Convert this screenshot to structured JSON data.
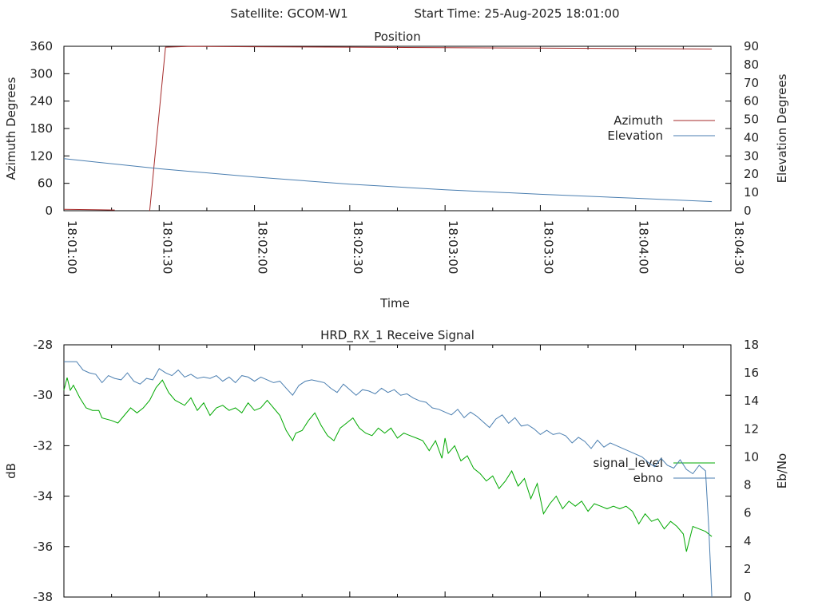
{
  "header": {
    "satellite_label": "Satellite: GCOM-W1",
    "start_time_label": "Start Time: 25-Aug-2025 18:01:00"
  },
  "chart_data": [
    {
      "type": "line",
      "title": "Position",
      "xlabel": "Time",
      "ylabel": "Azimuth Degrees",
      "y2label": "Elevation Degrees",
      "xlim": [
        "18:01:00",
        "18:04:30"
      ],
      "ylim": [
        0,
        360
      ],
      "y2lim": [
        0,
        90
      ],
      "x_ticks": [
        "18:01:00",
        "18:01:30",
        "18:02:00",
        "18:02:30",
        "18:03:00",
        "18:03:30",
        "18:04:00",
        "18:04:30"
      ],
      "y_ticks": [
        "0",
        "60",
        "120",
        "180",
        "240",
        "300",
        "360"
      ],
      "y2_ticks": [
        "0",
        "10",
        "20",
        "30",
        "40",
        "50",
        "60",
        "70",
        "80",
        "90"
      ],
      "legend_position": "right",
      "grid": false,
      "series": [
        {
          "name": "Azimuth",
          "axis": "left",
          "color": "#a52a2a",
          "points": [
            [
              "18:01:00",
              3
            ],
            [
              "18:01:16",
              1.5
            ],
            [
              "18:01:17",
              null
            ],
            [
              "18:01:27",
              0
            ],
            [
              "18:01:32",
              358
            ],
            [
              "18:01:40",
              359.8
            ],
            [
              "18:02:00",
              359
            ],
            [
              "18:02:30",
              358
            ],
            [
              "18:03:00",
              357
            ],
            [
              "18:03:30",
              356
            ],
            [
              "18:04:00",
              355
            ],
            [
              "18:04:24",
              354
            ]
          ]
        },
        {
          "name": "Elevation",
          "axis": "right",
          "color": "#4a7eb0",
          "points": [
            [
              "18:01:00",
              28.5
            ],
            [
              "18:01:30",
              23
            ],
            [
              "18:02:00",
              18.5
            ],
            [
              "18:02:30",
              14.5
            ],
            [
              "18:03:00",
              11.5
            ],
            [
              "18:03:30",
              9
            ],
            [
              "18:04:00",
              6.8
            ],
            [
              "18:04:24",
              5
            ]
          ]
        }
      ]
    },
    {
      "type": "line",
      "title": "HRD_RX_1 Receive Signal",
      "xlabel": "",
      "ylabel": "dB",
      "y2label": "Eb/No",
      "xlim": [
        "18:01:00",
        "18:04:30"
      ],
      "ylim": [
        -38,
        -28
      ],
      "y2lim": [
        0,
        18
      ],
      "y_ticks": [
        "-28",
        "-30",
        "-32",
        "-34",
        "-36",
        "-38"
      ],
      "y2_ticks": [
        "0",
        "2",
        "4",
        "6",
        "8",
        "10",
        "12",
        "14",
        "16",
        "18"
      ],
      "legend_position": "right",
      "grid": false,
      "series": [
        {
          "name": "signal_level",
          "axis": "left",
          "color": "#00a800",
          "points": [
            [
              "18:01:00",
              -29.8
            ],
            [
              "18:01:01",
              -29.3
            ],
            [
              "18:01:02",
              -29.8
            ],
            [
              "18:01:03",
              -29.6
            ],
            [
              "18:01:05",
              -30.1
            ],
            [
              "18:01:07",
              -30.5
            ],
            [
              "18:01:09",
              -30.6
            ],
            [
              "18:01:11",
              -30.6
            ],
            [
              "18:01:12",
              -30.9
            ],
            [
              "18:01:15",
              -31.0
            ],
            [
              "18:01:17",
              -31.1
            ],
            [
              "18:01:19",
              -30.8
            ],
            [
              "18:01:21",
              -30.5
            ],
            [
              "18:01:23",
              -30.7
            ],
            [
              "18:01:25",
              -30.5
            ],
            [
              "18:01:27",
              -30.2
            ],
            [
              "18:01:29",
              -29.7
            ],
            [
              "18:01:31",
              -29.4
            ],
            [
              "18:01:33",
              -29.9
            ],
            [
              "18:01:35",
              -30.2
            ],
            [
              "18:01:38",
              -30.4
            ],
            [
              "18:01:40",
              -30.1
            ],
            [
              "18:01:42",
              -30.6
            ],
            [
              "18:01:44",
              -30.3
            ],
            [
              "18:01:46",
              -30.8
            ],
            [
              "18:01:48",
              -30.5
            ],
            [
              "18:01:50",
              -30.4
            ],
            [
              "18:01:52",
              -30.6
            ],
            [
              "18:01:54",
              -30.5
            ],
            [
              "18:01:56",
              -30.7
            ],
            [
              "18:01:58",
              -30.3
            ],
            [
              "18:02:00",
              -30.6
            ],
            [
              "18:02:02",
              -30.5
            ],
            [
              "18:02:04",
              -30.2
            ],
            [
              "18:02:06",
              -30.5
            ],
            [
              "18:02:08",
              -30.8
            ],
            [
              "18:02:10",
              -31.4
            ],
            [
              "18:02:12",
              -31.8
            ],
            [
              "18:02:13",
              -31.5
            ],
            [
              "18:02:15",
              -31.4
            ],
            [
              "18:02:17",
              -31.0
            ],
            [
              "18:02:19",
              -30.7
            ],
            [
              "18:02:21",
              -31.2
            ],
            [
              "18:02:23",
              -31.6
            ],
            [
              "18:02:25",
              -31.8
            ],
            [
              "18:02:27",
              -31.3
            ],
            [
              "18:02:29",
              -31.1
            ],
            [
              "18:02:31",
              -30.9
            ],
            [
              "18:02:33",
              -31.3
            ],
            [
              "18:02:35",
              -31.5
            ],
            [
              "18:02:37",
              -31.6
            ],
            [
              "18:02:39",
              -31.3
            ],
            [
              "18:02:41",
              -31.5
            ],
            [
              "18:02:43",
              -31.3
            ],
            [
              "18:02:45",
              -31.7
            ],
            [
              "18:02:47",
              -31.5
            ],
            [
              "18:02:49",
              -31.6
            ],
            [
              "18:02:51",
              -31.7
            ],
            [
              "18:02:53",
              -31.8
            ],
            [
              "18:02:55",
              -32.2
            ],
            [
              "18:02:57",
              -31.8
            ],
            [
              "18:02:59",
              -32.5
            ],
            [
              "18:03:00",
              -31.7
            ],
            [
              "18:03:01",
              -32.3
            ],
            [
              "18:03:03",
              -32.0
            ],
            [
              "18:03:05",
              -32.6
            ],
            [
              "18:03:07",
              -32.4
            ],
            [
              "18:03:09",
              -32.9
            ],
            [
              "18:03:11",
              -33.1
            ],
            [
              "18:03:13",
              -33.4
            ],
            [
              "18:03:15",
              -33.2
            ],
            [
              "18:03:17",
              -33.7
            ],
            [
              "18:03:19",
              -33.4
            ],
            [
              "18:03:21",
              -33.0
            ],
            [
              "18:03:23",
              -33.6
            ],
            [
              "18:03:25",
              -33.3
            ],
            [
              "18:03:27",
              -34.1
            ],
            [
              "18:03:29",
              -33.5
            ],
            [
              "18:03:31",
              -34.7
            ],
            [
              "18:03:33",
              -34.3
            ],
            [
              "18:03:35",
              -34.0
            ],
            [
              "18:03:37",
              -34.5
            ],
            [
              "18:03:39",
              -34.2
            ],
            [
              "18:03:41",
              -34.4
            ],
            [
              "18:03:43",
              -34.2
            ],
            [
              "18:03:45",
              -34.6
            ],
            [
              "18:03:47",
              -34.3
            ],
            [
              "18:03:49",
              -34.4
            ],
            [
              "18:03:51",
              -34.5
            ],
            [
              "18:03:53",
              -34.4
            ],
            [
              "18:03:55",
              -34.5
            ],
            [
              "18:03:57",
              -34.4
            ],
            [
              "18:03:59",
              -34.6
            ],
            [
              "18:04:01",
              -35.1
            ],
            [
              "18:04:03",
              -34.7
            ],
            [
              "18:04:05",
              -35.0
            ],
            [
              "18:04:07",
              -34.9
            ],
            [
              "18:04:09",
              -35.3
            ],
            [
              "18:04:11",
              -35.0
            ],
            [
              "18:04:13",
              -35.2
            ],
            [
              "18:04:15",
              -35.5
            ],
            [
              "18:04:16",
              -36.2
            ],
            [
              "18:04:18",
              -35.2
            ],
            [
              "18:04:20",
              -35.3
            ],
            [
              "18:04:22",
              -35.4
            ],
            [
              "18:04:24",
              -35.6
            ]
          ]
        },
        {
          "name": "ebno",
          "axis": "right",
          "color": "#4a7eb0",
          "points": [
            [
              "18:01:00",
              16.8
            ],
            [
              "18:01:04",
              16.8
            ],
            [
              "18:01:06",
              16.2
            ],
            [
              "18:01:08",
              16.0
            ],
            [
              "18:01:10",
              15.9
            ],
            [
              "18:01:12",
              15.3
            ],
            [
              "18:01:14",
              15.8
            ],
            [
              "18:01:16",
              15.6
            ],
            [
              "18:01:18",
              15.5
            ],
            [
              "18:01:20",
              16.0
            ],
            [
              "18:01:22",
              15.4
            ],
            [
              "18:01:24",
              15.2
            ],
            [
              "18:01:26",
              15.6
            ],
            [
              "18:01:28",
              15.5
            ],
            [
              "18:01:30",
              16.3
            ],
            [
              "18:01:32",
              16.0
            ],
            [
              "18:01:34",
              15.8
            ],
            [
              "18:01:36",
              16.2
            ],
            [
              "18:01:38",
              15.7
            ],
            [
              "18:01:40",
              15.9
            ],
            [
              "18:01:42",
              15.6
            ],
            [
              "18:01:44",
              15.7
            ],
            [
              "18:01:46",
              15.6
            ],
            [
              "18:01:48",
              15.8
            ],
            [
              "18:01:50",
              15.4
            ],
            [
              "18:01:52",
              15.7
            ],
            [
              "18:01:54",
              15.3
            ],
            [
              "18:01:56",
              15.8
            ],
            [
              "18:01:58",
              15.7
            ],
            [
              "18:02:00",
              15.4
            ],
            [
              "18:02:02",
              15.7
            ],
            [
              "18:02:04",
              15.5
            ],
            [
              "18:02:06",
              15.3
            ],
            [
              "18:02:08",
              15.4
            ],
            [
              "18:02:10",
              14.9
            ],
            [
              "18:02:12",
              14.4
            ],
            [
              "18:02:14",
              15.1
            ],
            [
              "18:02:16",
              15.4
            ],
            [
              "18:02:18",
              15.5
            ],
            [
              "18:02:20",
              15.4
            ],
            [
              "18:02:22",
              15.3
            ],
            [
              "18:02:24",
              14.9
            ],
            [
              "18:02:26",
              14.6
            ],
            [
              "18:02:28",
              15.2
            ],
            [
              "18:02:30",
              14.8
            ],
            [
              "18:02:32",
              14.4
            ],
            [
              "18:02:34",
              14.8
            ],
            [
              "18:02:36",
              14.7
            ],
            [
              "18:02:38",
              14.5
            ],
            [
              "18:02:40",
              14.9
            ],
            [
              "18:02:42",
              14.6
            ],
            [
              "18:02:44",
              14.8
            ],
            [
              "18:02:46",
              14.4
            ],
            [
              "18:02:48",
              14.5
            ],
            [
              "18:02:50",
              14.2
            ],
            [
              "18:02:52",
              14.0
            ],
            [
              "18:02:54",
              13.9
            ],
            [
              "18:02:56",
              13.5
            ],
            [
              "18:02:58",
              13.4
            ],
            [
              "18:03:00",
              13.2
            ],
            [
              "18:03:02",
              13.0
            ],
            [
              "18:03:04",
              13.4
            ],
            [
              "18:03:06",
              12.8
            ],
            [
              "18:03:08",
              13.2
            ],
            [
              "18:03:10",
              12.9
            ],
            [
              "18:03:12",
              12.5
            ],
            [
              "18:03:14",
              12.1
            ],
            [
              "18:03:16",
              12.7
            ],
            [
              "18:03:18",
              13.0
            ],
            [
              "18:03:20",
              12.4
            ],
            [
              "18:03:22",
              12.8
            ],
            [
              "18:03:24",
              12.2
            ],
            [
              "18:03:26",
              12.3
            ],
            [
              "18:03:28",
              12.0
            ],
            [
              "18:03:30",
              11.6
            ],
            [
              "18:03:32",
              11.9
            ],
            [
              "18:03:34",
              11.6
            ],
            [
              "18:03:36",
              11.7
            ],
            [
              "18:03:38",
              11.5
            ],
            [
              "18:03:40",
              11.0
            ],
            [
              "18:03:42",
              11.4
            ],
            [
              "18:03:44",
              11.1
            ],
            [
              "18:03:46",
              10.6
            ],
            [
              "18:03:48",
              11.2
            ],
            [
              "18:03:50",
              10.7
            ],
            [
              "18:03:52",
              11.0
            ],
            [
              "18:03:54",
              10.8
            ],
            [
              "18:03:56",
              10.6
            ],
            [
              "18:03:58",
              10.4
            ],
            [
              "18:04:00",
              10.2
            ],
            [
              "18:04:02",
              10.0
            ],
            [
              "18:04:04",
              9.6
            ],
            [
              "18:04:06",
              9.3
            ],
            [
              "18:04:08",
              9.9
            ],
            [
              "18:04:10",
              9.4
            ],
            [
              "18:04:12",
              9.2
            ],
            [
              "18:04:14",
              9.8
            ],
            [
              "18:04:16",
              9.1
            ],
            [
              "18:04:18",
              8.8
            ],
            [
              "18:04:20",
              9.4
            ],
            [
              "18:04:22",
              9.0
            ],
            [
              "18:04:23",
              5.0
            ],
            [
              "18:04:24",
              0
            ]
          ]
        }
      ]
    }
  ]
}
